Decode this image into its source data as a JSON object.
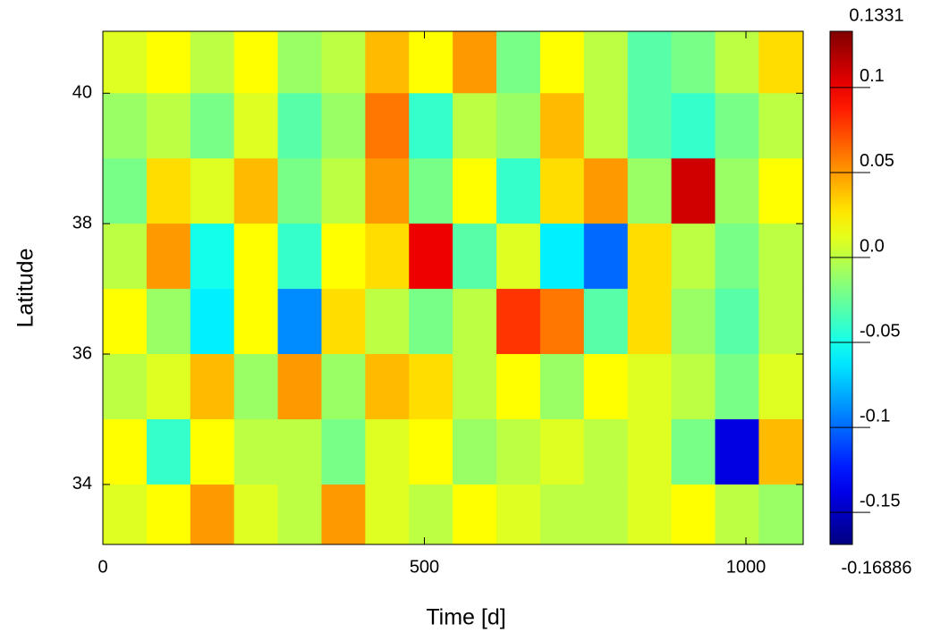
{
  "chart_data": {
    "type": "contourf",
    "xlabel": "Time [d]",
    "ylabel": "Latitude",
    "x": [
      34,
      102,
      170,
      238,
      306,
      374,
      442,
      510,
      578,
      646,
      714,
      782,
      850,
      918,
      986,
      1054
    ],
    "y": [
      40.5,
      39.5,
      38.5,
      37.5,
      36.5,
      35.5,
      34.5,
      33.5
    ],
    "z": [
      [
        0.01,
        0.02,
        0.0,
        0.02,
        -0.01,
        0.0,
        0.04,
        0.02,
        0.05,
        -0.02,
        0.02,
        0.0,
        -0.03,
        -0.02,
        0.0,
        0.03
      ],
      [
        -0.01,
        0.0,
        -0.02,
        0.01,
        -0.03,
        -0.01,
        0.06,
        -0.04,
        0.0,
        -0.01,
        0.04,
        0.0,
        -0.03,
        -0.04,
        -0.02,
        0.0
      ],
      [
        -0.02,
        0.03,
        0.01,
        0.04,
        -0.02,
        0.0,
        0.05,
        -0.02,
        0.02,
        -0.04,
        0.03,
        0.05,
        -0.01,
        0.11,
        -0.01,
        0.02
      ],
      [
        0.0,
        0.05,
        -0.05,
        0.02,
        -0.04,
        0.02,
        0.03,
        0.1,
        -0.03,
        0.01,
        -0.06,
        -0.1,
        0.03,
        0.0,
        -0.02,
        0.0
      ],
      [
        0.02,
        -0.01,
        -0.06,
        0.02,
        -0.09,
        0.03,
        0.0,
        -0.02,
        0.0,
        0.08,
        0.06,
        -0.03,
        0.03,
        -0.01,
        -0.03,
        0.0
      ],
      [
        0.0,
        0.01,
        0.04,
        -0.01,
        0.05,
        -0.01,
        0.04,
        0.03,
        0.0,
        0.02,
        -0.01,
        0.02,
        0.01,
        0.0,
        -0.02,
        0.01
      ],
      [
        0.02,
        -0.04,
        0.02,
        0.0,
        0.0,
        -0.02,
        0.01,
        0.02,
        -0.01,
        0.0,
        0.01,
        0.0,
        0.01,
        -0.02,
        -0.14,
        0.04
      ],
      [
        0.01,
        0.02,
        0.05,
        0.01,
        0.0,
        0.05,
        0.01,
        0.0,
        0.02,
        0.01,
        0.0,
        0.0,
        0.01,
        0.02,
        0.0,
        -0.01
      ]
    ],
    "xlim": [
      0,
      1089
    ],
    "ylim": [
      33.08,
      40.95
    ],
    "xticks": [
      0,
      500,
      1000
    ],
    "yticks": [
      34,
      36,
      38,
      40
    ],
    "colormap": "jet",
    "clim": [
      -0.16886,
      0.1331
    ],
    "cticks": [
      -0.15,
      -0.1,
      -0.05,
      {
        "value": 0,
        "label": "0.0"
      },
      0.05,
      0.1
    ]
  }
}
